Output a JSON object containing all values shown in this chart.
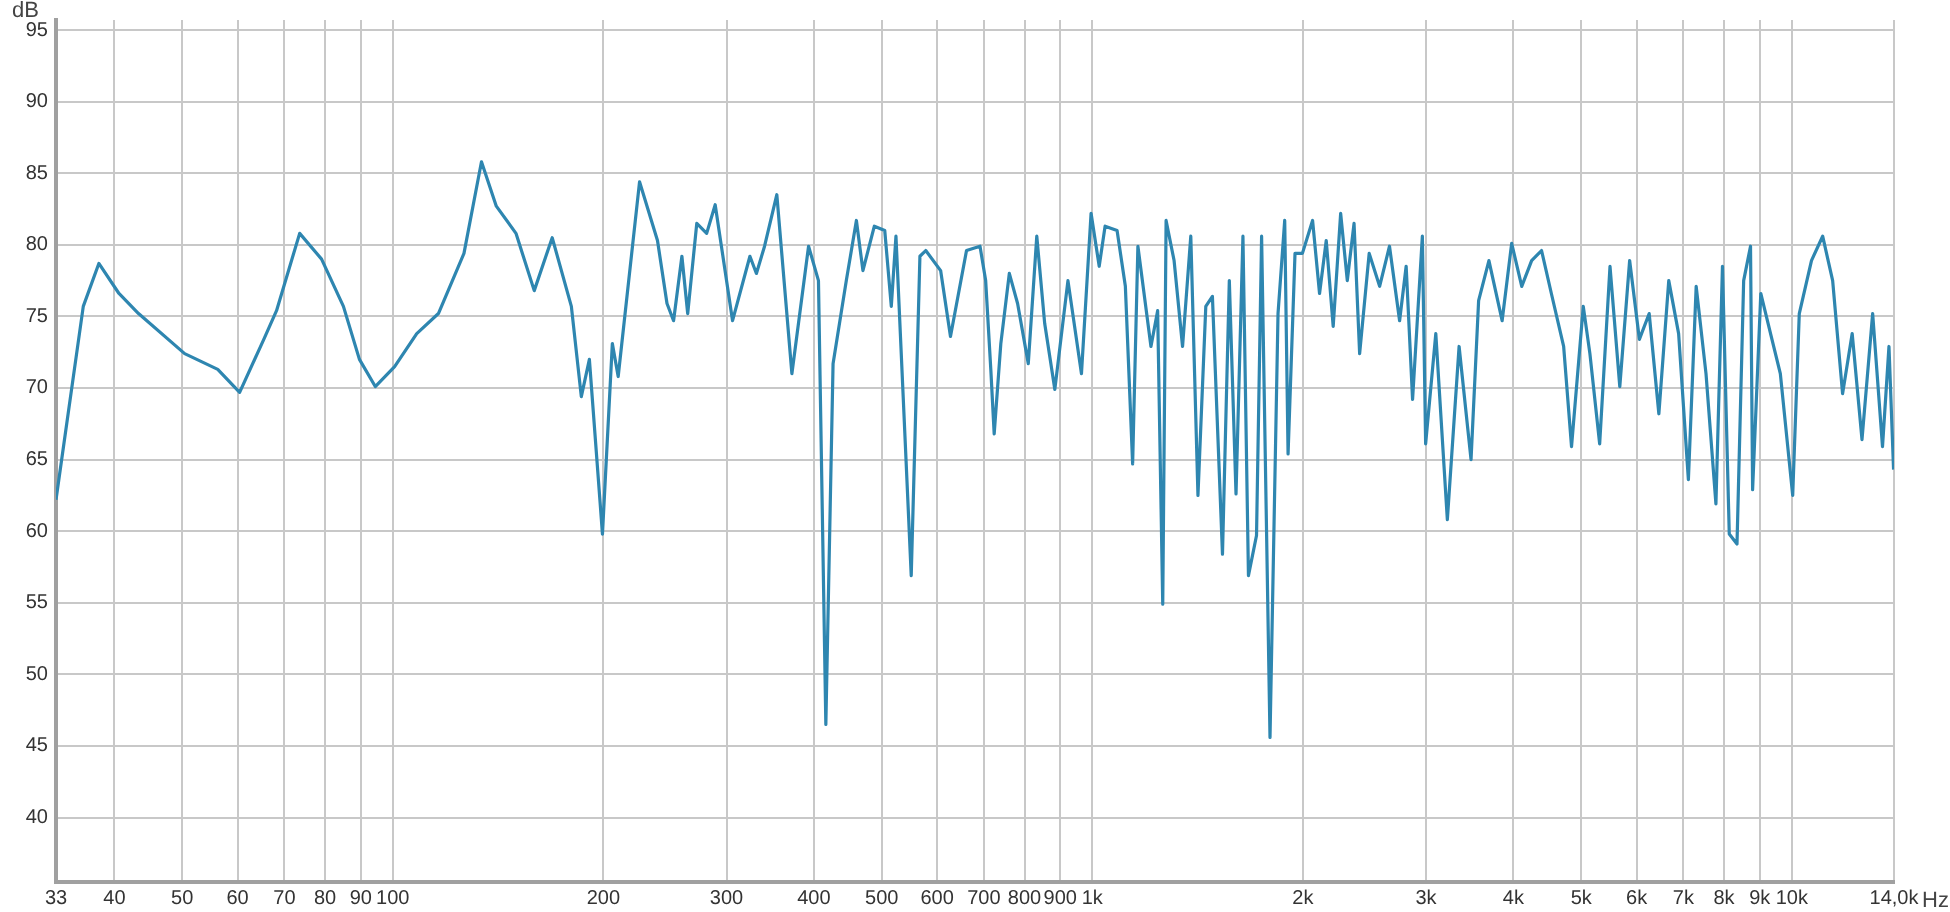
{
  "chart_data": {
    "type": "line",
    "xlabel": "Hz",
    "ylabel": "dB",
    "log": "x",
    "grid": true,
    "line_style": "solid",
    "xlim": [
      33,
      14000
    ],
    "ylim": [
      35.5,
      95.7
    ],
    "xticks": [
      33,
      40,
      50,
      60,
      70,
      80,
      90,
      100,
      200,
      300,
      400,
      500,
      600,
      700,
      800,
      900,
      {
        "value": 1000,
        "label": "1k"
      },
      {
        "value": 2000,
        "label": "2k"
      },
      {
        "value": 3000,
        "label": "3k"
      },
      {
        "value": 4000,
        "label": "4k"
      },
      {
        "value": 5000,
        "label": "5k"
      },
      {
        "value": 6000,
        "label": "6k"
      },
      {
        "value": 7000,
        "label": "7k"
      },
      {
        "value": 8000,
        "label": "8k"
      },
      {
        "value": 9000,
        "label": "9k"
      },
      {
        "value": 10000,
        "label": "10k"
      },
      {
        "value": 14000,
        "label": "14,0k"
      }
    ],
    "yticks": [
      40,
      45,
      50,
      55,
      60,
      65,
      70,
      75,
      80,
      85,
      90,
      95
    ],
    "series": [
      {
        "color": "#2e86b0",
        "x": [
          33,
          36.1,
          38,
          40.6,
          43.3,
          50.4,
          56.2,
          60.4,
          65.4,
          68.2,
          73.6,
          79.1,
          85,
          89.6,
          94.4,
          100.6,
          108.2,
          116.2,
          126.4,
          133.9,
          140.6,
          150,
          159.3,
          169,
          180,
          186,
          191,
          199.4,
          206,
          210,
          225.3,
          239,
          246.6,
          252,
          259,
          264,
          272,
          281,
          289,
          306,
          324,
          331,
          340,
          354,
          372,
          393,
          406,
          416,
          426,
          445,
          460,
          470,
          488,
          505,
          516,
          524,
          551,
          567,
          578,
          607,
          627,
          661,
          691,
          704,
          716,
          724,
          740,
          761,
          782,
          810,
          833,
          855,
          884,
          923,
          965,
          996,
          1023,
          1043,
          1085,
          1115,
          1142,
          1162,
          1213,
          1240,
          1261,
          1275,
          1309,
          1346,
          1383,
          1416,
          1453,
          1485,
          1535,
          1570,
          1605,
          1642,
          1672,
          1717,
          1746,
          1795,
          1843,
          1884,
          1905,
          1949,
          1997,
          2065,
          2113,
          2160,
          2210,
          2265,
          2315,
          2367,
          2411,
          2488,
          2575,
          2660,
          2750,
          2810,
          2870,
          2964,
          2996,
          3098,
          3218,
          3345,
          3479,
          3567,
          3690,
          3854,
          3977,
          4111,
          4247,
          4388,
          4532,
          4719,
          4843,
          5034,
          5145,
          5313,
          5497,
          5677,
          5864,
          6055,
          6254,
          6456,
          6670,
          6890,
          7115,
          7300,
          7540,
          7790,
          7960,
          8140,
          8350,
          8535,
          8730,
          8790,
          9030,
          9325,
          9630,
          10030,
          10250,
          10670,
          11070,
          11440,
          11820,
          12200,
          12600,
          13050,
          13480,
          13770,
          13980
        ],
        "values": [
          62.2,
          75.7,
          78.7,
          76.6,
          75.2,
          72.4,
          71.3,
          69.7,
          73.4,
          75.4,
          80.8,
          79,
          75.7,
          72,
          70.1,
          71.5,
          73.8,
          75.2,
          79.4,
          85.8,
          82.7,
          80.8,
          76.8,
          80.5,
          75.7,
          69.4,
          72,
          59.8,
          73.1,
          70.8,
          84.4,
          80.3,
          75.9,
          74.7,
          79.2,
          75.2,
          81.5,
          80.8,
          82.8,
          74.7,
          79.2,
          78,
          79.9,
          83.5,
          71,
          79.9,
          77.5,
          46.5,
          71.7,
          77.5,
          81.7,
          78.2,
          81.3,
          81,
          75.7,
          80.6,
          56.9,
          79.2,
          79.6,
          78.2,
          73.6,
          79.6,
          79.9,
          77.5,
          71.3,
          66.8,
          73.1,
          78,
          75.9,
          71.7,
          80.6,
          74.5,
          69.9,
          77.5,
          71,
          82.2,
          78.5,
          81.3,
          81,
          77.1,
          64.7,
          79.9,
          72.9,
          75.4,
          54.9,
          81.7,
          78.9,
          72.9,
          80.6,
          62.5,
          75.7,
          76.4,
          58.4,
          77.5,
          62.6,
          80.6,
          56.9,
          59.7,
          80.6,
          45.6,
          75.2,
          81.7,
          65.4,
          79.4,
          79.4,
          81.7,
          76.6,
          80.3,
          74.3,
          82.2,
          77.5,
          81.5,
          72.4,
          79.4,
          77.1,
          79.9,
          74.7,
          78.5,
          69.2,
          80.6,
          66.1,
          73.8,
          60.8,
          72.9,
          65,
          76.1,
          78.9,
          74.7,
          80.1,
          77.1,
          78.9,
          79.6,
          76.6,
          72.9,
          65.9,
          75.7,
          72.4,
          66.1,
          78.5,
          70.1,
          78.9,
          73.4,
          75.2,
          68.2,
          77.5,
          73.8,
          63.6,
          77.1,
          71,
          61.9,
          78.5,
          59.8,
          59.1,
          77.5,
          79.9,
          62.9,
          76.6,
          73.8,
          71,
          62.5,
          75.2,
          78.9,
          80.6,
          77.5,
          69.6,
          73.8,
          66.4,
          75.2,
          65.9,
          72.9,
          64.3
        ]
      }
    ]
  }
}
